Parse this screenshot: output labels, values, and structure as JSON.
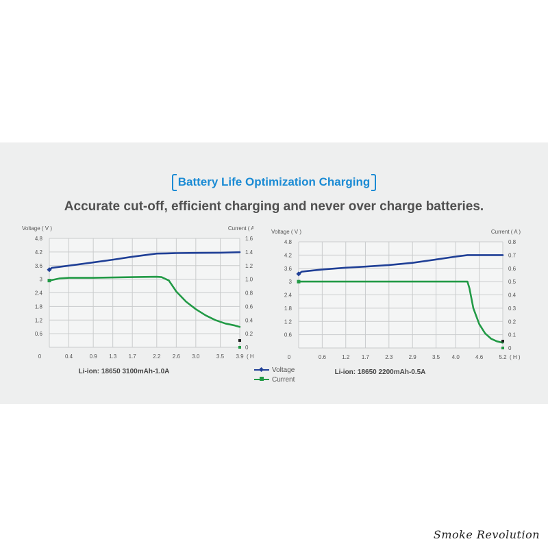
{
  "header": {
    "title": "Battery Life Optimization Charging",
    "subtitle": "Accurate cut-off, efficient charging and never over charge batteries."
  },
  "legend": {
    "voltage_label": "Voltage",
    "current_label": "Current"
  },
  "colors": {
    "voltage": "#1f3f96",
    "current": "#229a46",
    "title_accent": "#1b8bd4",
    "band_background": "#eeefef"
  },
  "brand": {
    "signature": "Smoke Revolution"
  },
  "chart_data": [
    {
      "type": "line",
      "title": "Li-ion: 18650 3100mAh-1.0A",
      "ylabel": "Voltage ( V )",
      "y2label": "Current ( A )",
      "xunit": "( H )",
      "x_ticks": [
        "0",
        "0.4",
        "0.9",
        "1.3",
        "1.7",
        "2.2",
        "2.6",
        "3.0",
        "3.5",
        "3.9"
      ],
      "x_tick_values": [
        0,
        0.4,
        0.9,
        1.3,
        1.7,
        2.2,
        2.6,
        3.0,
        3.5,
        3.9
      ],
      "y_ticks": [
        "0",
        "0.6",
        "1.2",
        "1.8",
        "2.4",
        "3",
        "3.6",
        "4.2",
        "4.8"
      ],
      "y2_ticks": [
        "0",
        "0.2",
        "0.4",
        "0.6",
        "0.8",
        "1.0",
        "1.2",
        "1.4",
        "1.6"
      ],
      "xlim": [
        0,
        3.9
      ],
      "ylim": [
        0,
        4.8
      ],
      "y2lim": [
        0,
        1.6
      ],
      "grid": true,
      "series": [
        {
          "name": "Voltage",
          "axis": "left",
          "x": [
            0,
            0.05,
            0.4,
            0.9,
            1.3,
            1.7,
            2.2,
            2.4,
            2.6,
            3.0,
            3.5,
            3.9
          ],
          "y": [
            3.42,
            3.5,
            3.6,
            3.74,
            3.86,
            3.99,
            4.13,
            4.14,
            4.15,
            4.16,
            4.17,
            4.19
          ]
        },
        {
          "name": "Current",
          "axis": "right",
          "x": [
            0,
            0.2,
            0.4,
            0.9,
            1.3,
            1.7,
            2.2,
            2.3,
            2.45,
            2.6,
            2.8,
            3.0,
            3.2,
            3.4,
            3.6,
            3.8,
            3.9
          ],
          "y": [
            0.98,
            1.01,
            1.02,
            1.02,
            1.025,
            1.03,
            1.035,
            1.03,
            0.98,
            0.82,
            0.67,
            0.56,
            0.47,
            0.4,
            0.35,
            0.32,
            0.3
          ]
        }
      ]
    },
    {
      "type": "line",
      "title": "Li-ion: 18650 2200mAh-0.5A",
      "ylabel": "Voltage ( V )",
      "y2label": "Current ( A )",
      "xunit": "( H )",
      "x_ticks": [
        "0",
        "0.6",
        "1.2",
        "1.7",
        "2.3",
        "2.9",
        "3.5",
        "4.0",
        "4.6",
        "5.2"
      ],
      "x_tick_values": [
        0,
        0.6,
        1.2,
        1.7,
        2.3,
        2.9,
        3.5,
        4.0,
        4.6,
        5.2
      ],
      "y_ticks": [
        "0",
        "0.6",
        "1.2",
        "1.8",
        "2.4",
        "3",
        "3.6",
        "4.2",
        "4.8"
      ],
      "y2_ticks": [
        "0",
        "0.1",
        "0.2",
        "0.3",
        "0.4",
        "0.5",
        "0.6",
        "0.7",
        "0.8"
      ],
      "xlim": [
        0,
        5.2
      ],
      "ylim": [
        0,
        4.8
      ],
      "y2lim": [
        0,
        0.8
      ],
      "grid": true,
      "series": [
        {
          "name": "Voltage",
          "axis": "left",
          "x": [
            0,
            0.08,
            0.6,
            1.2,
            1.7,
            2.3,
            2.9,
            3.5,
            4.0,
            4.3,
            4.6,
            5.2
          ],
          "y": [
            3.35,
            3.45,
            3.55,
            3.63,
            3.68,
            3.75,
            3.85,
            4.0,
            4.13,
            4.2,
            4.2,
            4.2
          ]
        },
        {
          "name": "Current",
          "axis": "right",
          "x": [
            0,
            0.6,
            1.2,
            1.7,
            2.3,
            2.9,
            3.5,
            4.0,
            4.3,
            4.35,
            4.45,
            4.6,
            4.75,
            4.9,
            5.05,
            5.2
          ],
          "y": [
            0.5,
            0.5,
            0.5,
            0.5,
            0.5,
            0.5,
            0.5,
            0.5,
            0.5,
            0.45,
            0.3,
            0.18,
            0.11,
            0.07,
            0.05,
            0.04
          ]
        }
      ]
    }
  ]
}
